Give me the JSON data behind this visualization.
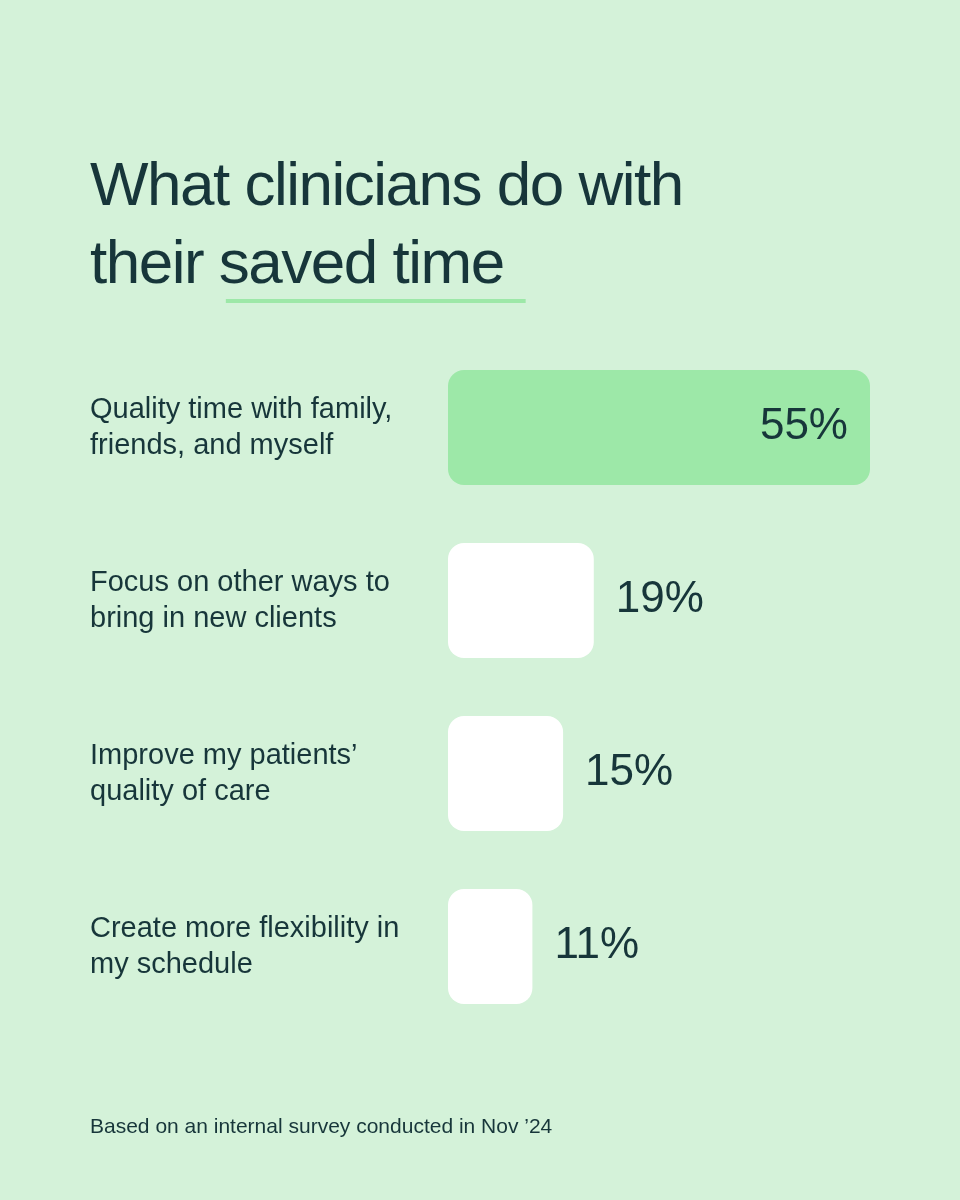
{
  "chart_data": {
    "type": "bar",
    "orientation": "horizontal",
    "title": "What clinicians do with their saved time",
    "categories": [
      "Quality time with family, friends, and myself",
      "Focus on other ways to bring in new clients",
      "Improve my patients’ quality of care",
      "Create more flexibility in my schedule"
    ],
    "values": [
      55,
      19,
      15,
      11
    ],
    "colors": [
      "#9de8a8",
      "#ffffff",
      "#ffffff",
      "#ffffff"
    ],
    "value_labels": [
      "55%",
      "19%",
      "15%",
      "11%"
    ],
    "annotations": [
      "Based on an internal survey conducted in Nov ’24"
    ]
  }
}
